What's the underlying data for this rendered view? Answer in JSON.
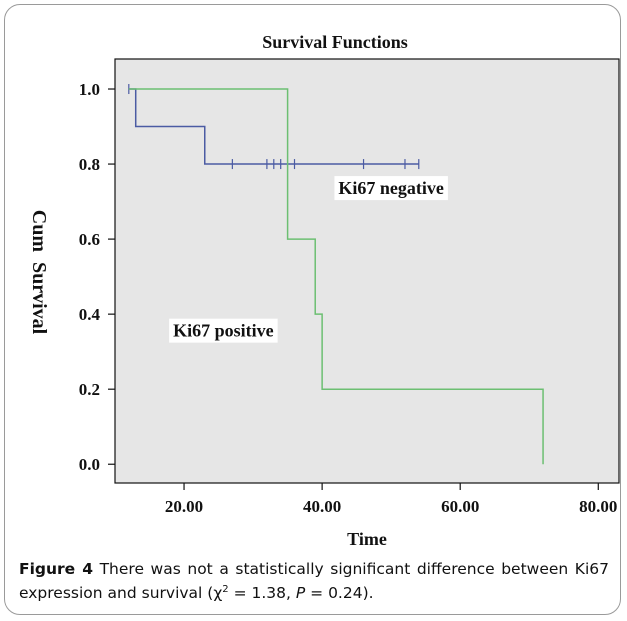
{
  "chart_data": {
    "type": "line",
    "title": "Survival Functions",
    "xlabel": "Time",
    "ylabel": "Cum  Survival",
    "xlim": [
      10,
      83
    ],
    "ylim": [
      -0.05,
      1.08
    ],
    "xticks": [
      20,
      40,
      60,
      80
    ],
    "xtick_labels": [
      "20.00",
      "40.00",
      "60.00",
      "80.00"
    ],
    "yticks": [
      0.0,
      0.2,
      0.4,
      0.6,
      0.8,
      1.0
    ],
    "ytick_labels": [
      "0.0",
      "0.2",
      "0.4",
      "0.6",
      "0.8",
      "1.0"
    ],
    "grid": false,
    "background": "#e6e6e6",
    "series": [
      {
        "name": "Ki67 negative",
        "color": "#4b5ba3",
        "steps": [
          [
            12,
            1.0
          ],
          [
            13,
            0.9
          ],
          [
            23,
            0.8
          ],
          [
            54,
            0.8
          ]
        ],
        "censored": [
          [
            12,
            1.0
          ],
          [
            27,
            0.8
          ],
          [
            32,
            0.8
          ],
          [
            33,
            0.8
          ],
          [
            34,
            0.8
          ],
          [
            36,
            0.8
          ],
          [
            46,
            0.8
          ],
          [
            52,
            0.8
          ],
          [
            54,
            0.8
          ]
        ]
      },
      {
        "name": "Ki67 positive",
        "color": "#6cbf72",
        "steps": [
          [
            12,
            1.0
          ],
          [
            34.5,
            1.0
          ],
          [
            35,
            0.6
          ],
          [
            39,
            0.4
          ],
          [
            40,
            0.2
          ],
          [
            72,
            0.2
          ],
          [
            72,
            0.0
          ]
        ],
        "censored": []
      }
    ],
    "annotations": [
      {
        "text": "Ki67 negative",
        "x": 50,
        "y": 0.72
      },
      {
        "text": "Ki67 positive",
        "x": 25.7,
        "y": 0.34
      }
    ]
  },
  "caption": {
    "label": "Figure 4",
    "text_before": "There was not a statistically significant difference between Ki67 expression and survival (χ",
    "sup": "2",
    "text_mid": " = 1.38, ",
    "p_symbol": "P",
    "text_after": " = 0.24)."
  }
}
